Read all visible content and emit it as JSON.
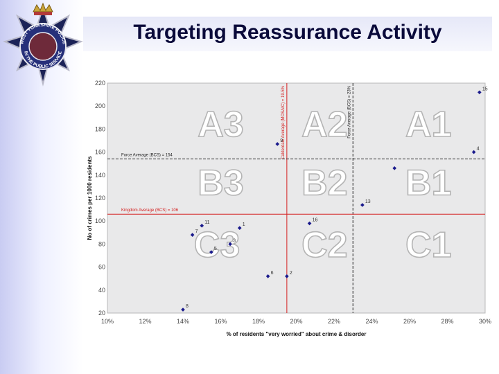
{
  "slide": {
    "title": "Targeting Reassurance Activity"
  },
  "badge": {
    "ring_text_top": "WEST YORKSHIRE POLICE",
    "ring_text_bottom": "IN THE PUBLIC SERVICE"
  },
  "chart_data": {
    "type": "scatter",
    "xlabel": "% of residents \"very worried\" about crime & disorder",
    "ylabel": "No of crimes per 1000 residents",
    "xlim": [
      10,
      30
    ],
    "ylim": [
      20,
      220
    ],
    "x_ticks": [
      "10%",
      "12%",
      "14%",
      "16%",
      "18%",
      "20%",
      "22%",
      "24%",
      "26%",
      "28%",
      "30%"
    ],
    "y_ticks": [
      "20",
      "40",
      "60",
      "80",
      "100",
      "120",
      "140",
      "160",
      "180",
      "200",
      "220"
    ],
    "points": [
      {
        "label": "15",
        "x": 29.7,
        "y": 212
      },
      {
        "label": "4",
        "x": 29.4,
        "y": 160
      },
      {
        "label": "9",
        "x": 19.0,
        "y": 167
      },
      {
        "label": "",
        "x": 25.2,
        "y": 146
      },
      {
        "label": "13",
        "x": 23.5,
        "y": 114
      },
      {
        "label": "16",
        "x": 20.7,
        "y": 98
      },
      {
        "label": "11",
        "x": 15.0,
        "y": 96
      },
      {
        "label": "1",
        "x": 17.0,
        "y": 94
      },
      {
        "label": "7",
        "x": 14.5,
        "y": 88
      },
      {
        "label": "3",
        "x": 16.5,
        "y": 80
      },
      {
        "label": "5",
        "x": 15.5,
        "y": 73
      },
      {
        "label": "6",
        "x": 18.5,
        "y": 52
      },
      {
        "label": "2",
        "x": 19.5,
        "y": 52
      },
      {
        "label": "8",
        "x": 14.0,
        "y": 23
      }
    ],
    "reference_lines": [
      {
        "orientation": "vertical",
        "x": 19.5,
        "label": "Calderdale Average (MOSAIC) = 19.5%",
        "color": "#d42020",
        "style": "solid"
      },
      {
        "orientation": "vertical",
        "x": 23.0,
        "label": "Force Average (BCS) = 23%",
        "color": "#222222",
        "style": "dashed"
      },
      {
        "orientation": "horizontal",
        "y": 154,
        "label": "Force Average (BCS) = 154",
        "color": "#222222",
        "style": "dashed"
      },
      {
        "orientation": "horizontal",
        "y": 106,
        "label": "Kingdom Average (BCS) = 106",
        "color": "#d42020",
        "style": "solid"
      }
    ],
    "zones": [
      {
        "label": "A3",
        "x": 16.0,
        "y": 182
      },
      {
        "label": "A2",
        "x": 21.5,
        "y": 182
      },
      {
        "label": "A1",
        "x": 27.0,
        "y": 182
      },
      {
        "label": "B3",
        "x": 16.0,
        "y": 131
      },
      {
        "label": "B2",
        "x": 21.5,
        "y": 131
      },
      {
        "label": "B1",
        "x": 27.0,
        "y": 131
      },
      {
        "label": "C3",
        "x": 15.8,
        "y": 77
      },
      {
        "label": "C2",
        "x": 21.5,
        "y": 77
      },
      {
        "label": "C1",
        "x": 27.0,
        "y": 77
      }
    ],
    "marker_color": "#1a1a8c",
    "grid": false
  }
}
